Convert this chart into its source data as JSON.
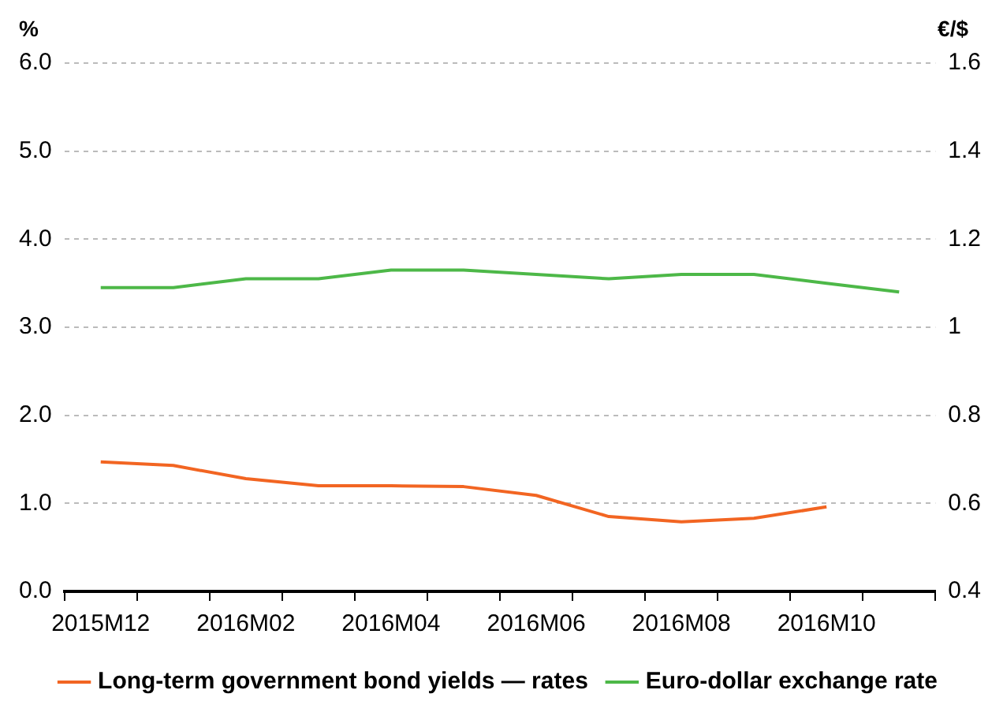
{
  "chart_data": {
    "type": "line",
    "categories": [
      "2015M12",
      null,
      "2016M02",
      null,
      "2016M04",
      null,
      "2016M06",
      null,
      "2016M08",
      null,
      "2016M10",
      null
    ],
    "series": [
      {
        "name": "Long-term government bond yields — rates",
        "color": "#f26522",
        "values": [
          1.47,
          1.43,
          1.28,
          1.2,
          1.2,
          1.19,
          1.09,
          0.85,
          0.79,
          0.83,
          0.96,
          null
        ]
      },
      {
        "name": "Euro-dollar exchange rate",
        "color": "#4db848",
        "axis": "y2",
        "values": [
          1.09,
          1.09,
          1.11,
          1.11,
          1.13,
          1.13,
          1.12,
          1.11,
          1.12,
          1.12,
          1.1,
          1.08
        ]
      }
    ],
    "ylabel": "%",
    "y2label": "€/$",
    "ylim": [
      0,
      6
    ],
    "yticks": [
      {
        "value": 0,
        "label": "0.0"
      },
      {
        "value": 1,
        "label": "1.0"
      },
      {
        "value": 2,
        "label": "2.0"
      },
      {
        "value": 3,
        "label": "3.0"
      },
      {
        "value": 4,
        "label": "4.0"
      },
      {
        "value": 5,
        "label": "5.0"
      },
      {
        "value": 6,
        "label": "6.0"
      }
    ],
    "y2lim": [
      0.4,
      1.6
    ],
    "y2ticks": [
      0.4,
      0.6,
      0.8,
      1,
      1.2,
      1.4,
      1.6
    ],
    "grid": "y",
    "legend": "bottom",
    "marker": "none",
    "line_style": "solid"
  }
}
